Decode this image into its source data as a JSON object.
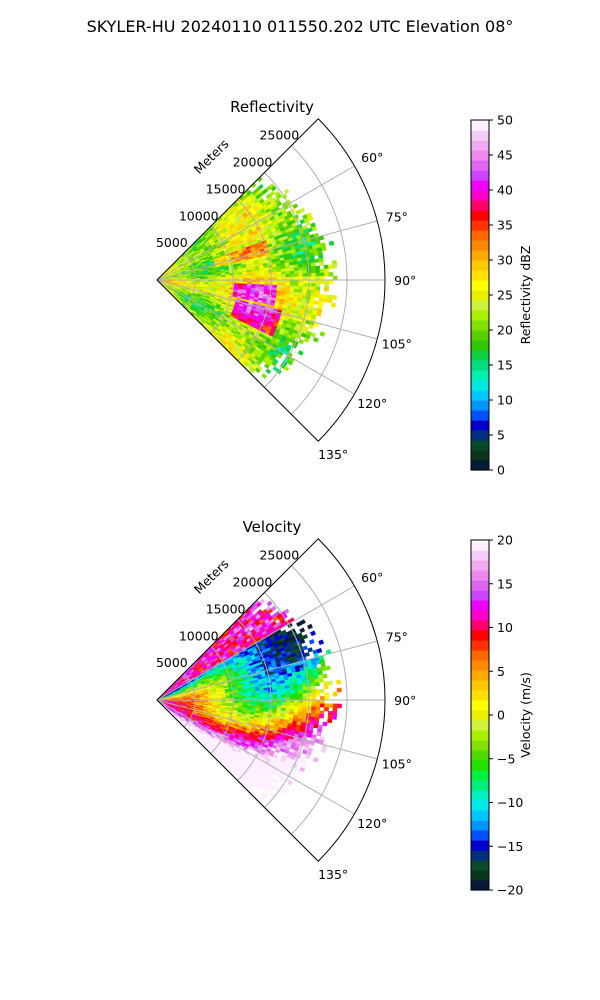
{
  "figure_title": "SKYLER-HU  20240110  011550.202 UTC Elevation 08°",
  "chart_data": [
    {
      "type": "heatmap",
      "title": "Reflectivity",
      "radial_axis_label": "Meters",
      "radial_ticks": [
        5000,
        10000,
        15000,
        20000,
        25000
      ],
      "radial_tick_labels": [
        "5000",
        "10000",
        "15000",
        "20000",
        "25000"
      ],
      "range_max": 30000,
      "azimuth_range": [
        45,
        135
      ],
      "azimuth_ticks": [
        60,
        75,
        90,
        105,
        120,
        135
      ],
      "azimuth_tick_labels": [
        "60°",
        "75°",
        "90°",
        "105°",
        "120°",
        "135°"
      ],
      "grid": true,
      "colorbar": {
        "label": "Reflectivity dBZ",
        "range": [
          0,
          50
        ],
        "ticks": [
          0,
          5,
          10,
          15,
          20,
          25,
          30,
          35,
          40,
          45,
          50
        ],
        "tick_labels": [
          "0",
          "5",
          "10",
          "15",
          "20",
          "25",
          "30",
          "35",
          "40",
          "45",
          "50"
        ],
        "colors": [
          "#061a3a",
          "#0a3320",
          "#094a2f",
          "#003080",
          "#0000cc",
          "#0050ff",
          "#0094ff",
          "#00c8ff",
          "#00e8dd",
          "#00f0b0",
          "#00e080",
          "#10d040",
          "#30c800",
          "#58d000",
          "#80e000",
          "#a8f000",
          "#ccf040",
          "#e6f000",
          "#ffff00",
          "#ffe000",
          "#ffc800",
          "#ffaa00",
          "#ff8800",
          "#ff6600",
          "#ff3300",
          "#ff0000",
          "#ff0066",
          "#ff00cc",
          "#ee00ff",
          "#cc44ff",
          "#dd66ee",
          "#ee88ee",
          "#f0aaf2",
          "#f6ccf8",
          "#fff0ff"
        ]
      }
    },
    {
      "type": "heatmap",
      "title": "Velocity",
      "radial_axis_label": "Meters",
      "radial_ticks": [
        5000,
        10000,
        15000,
        20000,
        25000
      ],
      "radial_tick_labels": [
        "5000",
        "10000",
        "15000",
        "20000",
        "25000"
      ],
      "range_max": 30000,
      "azimuth_range": [
        45,
        135
      ],
      "azimuth_ticks": [
        60,
        75,
        90,
        105,
        120,
        135
      ],
      "azimuth_tick_labels": [
        "60°",
        "75°",
        "90°",
        "105°",
        "120°",
        "135°"
      ],
      "grid": true,
      "colorbar": {
        "label": "Velocity (m/s)",
        "range": [
          -20,
          20
        ],
        "ticks": [
          -20,
          -15,
          -10,
          -5,
          0,
          5,
          10,
          15,
          20
        ],
        "tick_labels": [
          "−20",
          "−15",
          "−10",
          "−5",
          "0",
          "5",
          "10",
          "15",
          "20"
        ],
        "colors": [
          "#061a3a",
          "#0a3320",
          "#094a2f",
          "#003080",
          "#0000cc",
          "#0050ff",
          "#0094ff",
          "#00c8ff",
          "#00e8e8",
          "#00f0c0",
          "#00f080",
          "#00f040",
          "#20e000",
          "#50d800",
          "#80e000",
          "#a8f000",
          "#d0f040",
          "#e6f000",
          "#ffff00",
          "#ffe000",
          "#ffc800",
          "#ffaa00",
          "#ff8800",
          "#ff6600",
          "#ff3300",
          "#ff0000",
          "#ff0066",
          "#ff00cc",
          "#ee00ff",
          "#cc44ff",
          "#dd66ee",
          "#ee88ee",
          "#f0aaf2",
          "#f6ccf8",
          "#fff0ff"
        ]
      }
    }
  ]
}
